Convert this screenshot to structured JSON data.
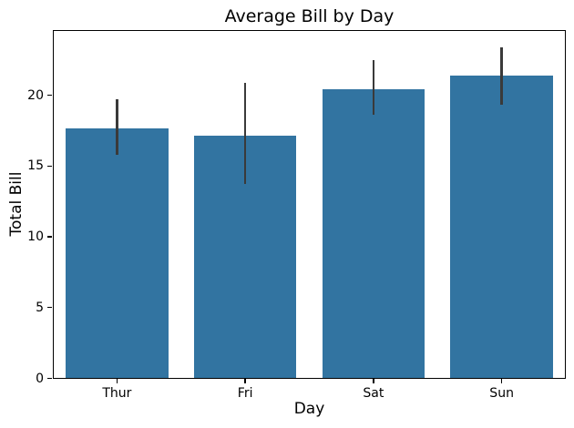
{
  "chart_data": {
    "type": "bar",
    "title": "Average Bill by Day",
    "xlabel": "Day",
    "ylabel": "Total Bill",
    "categories": [
      "Thur",
      "Fri",
      "Sat",
      "Sun"
    ],
    "values": [
      17.68,
      17.15,
      20.44,
      21.41
    ],
    "error_bars": [
      {
        "low": 15.8,
        "high": 19.7
      },
      {
        "low": 13.7,
        "high": 20.9
      },
      {
        "low": 18.6,
        "high": 22.5
      },
      {
        "low": 19.3,
        "high": 23.4
      }
    ],
    "yticks": [
      0,
      5,
      10,
      15,
      20
    ],
    "ylim": [
      0,
      24.6
    ],
    "grid": false,
    "legend_position": "none",
    "bar_color": "#3274a1",
    "error_bar_color": "#3a3a3a",
    "axis_color": "#000000",
    "background_color": "#ffffff"
  }
}
